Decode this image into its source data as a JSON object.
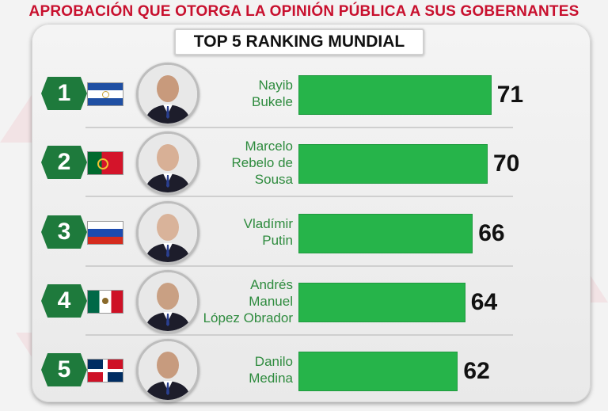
{
  "header": {
    "title": "APROBACIÓN QUE OTORGA LA OPINIÓN PÚBLICA A SUS GOBERNANTES",
    "subtitle": "TOP 5 RANKING MUNDIAL"
  },
  "colors": {
    "title": "#c8102e",
    "bar": "#26b44a",
    "rank_badge": "#1e7a3c",
    "name": "#2e8b3e"
  },
  "chart_data": {
    "type": "bar",
    "orientation": "horizontal",
    "title": "TOP 5 RANKING MUNDIAL",
    "categories": [
      "Nayib\nBukele",
      "Marcelo\nRebelo de\nSousa",
      "Vladímir\nPutin",
      "Andrés\nManuel\nLópez Obrador",
      "Danilo\nMedina"
    ],
    "ranks": [
      "1",
      "2",
      "3",
      "4",
      "5"
    ],
    "flags": [
      "el-salvador-flag",
      "portugal-flag",
      "russia-flag",
      "mexico-flag",
      "dominican-republic-flag"
    ],
    "values": [
      71,
      70,
      66,
      64,
      62
    ],
    "value_labels": [
      "71",
      "70",
      "66",
      "64",
      "62"
    ],
    "xlim": [
      0,
      100
    ],
    "grid": false,
    "legend": "none"
  }
}
